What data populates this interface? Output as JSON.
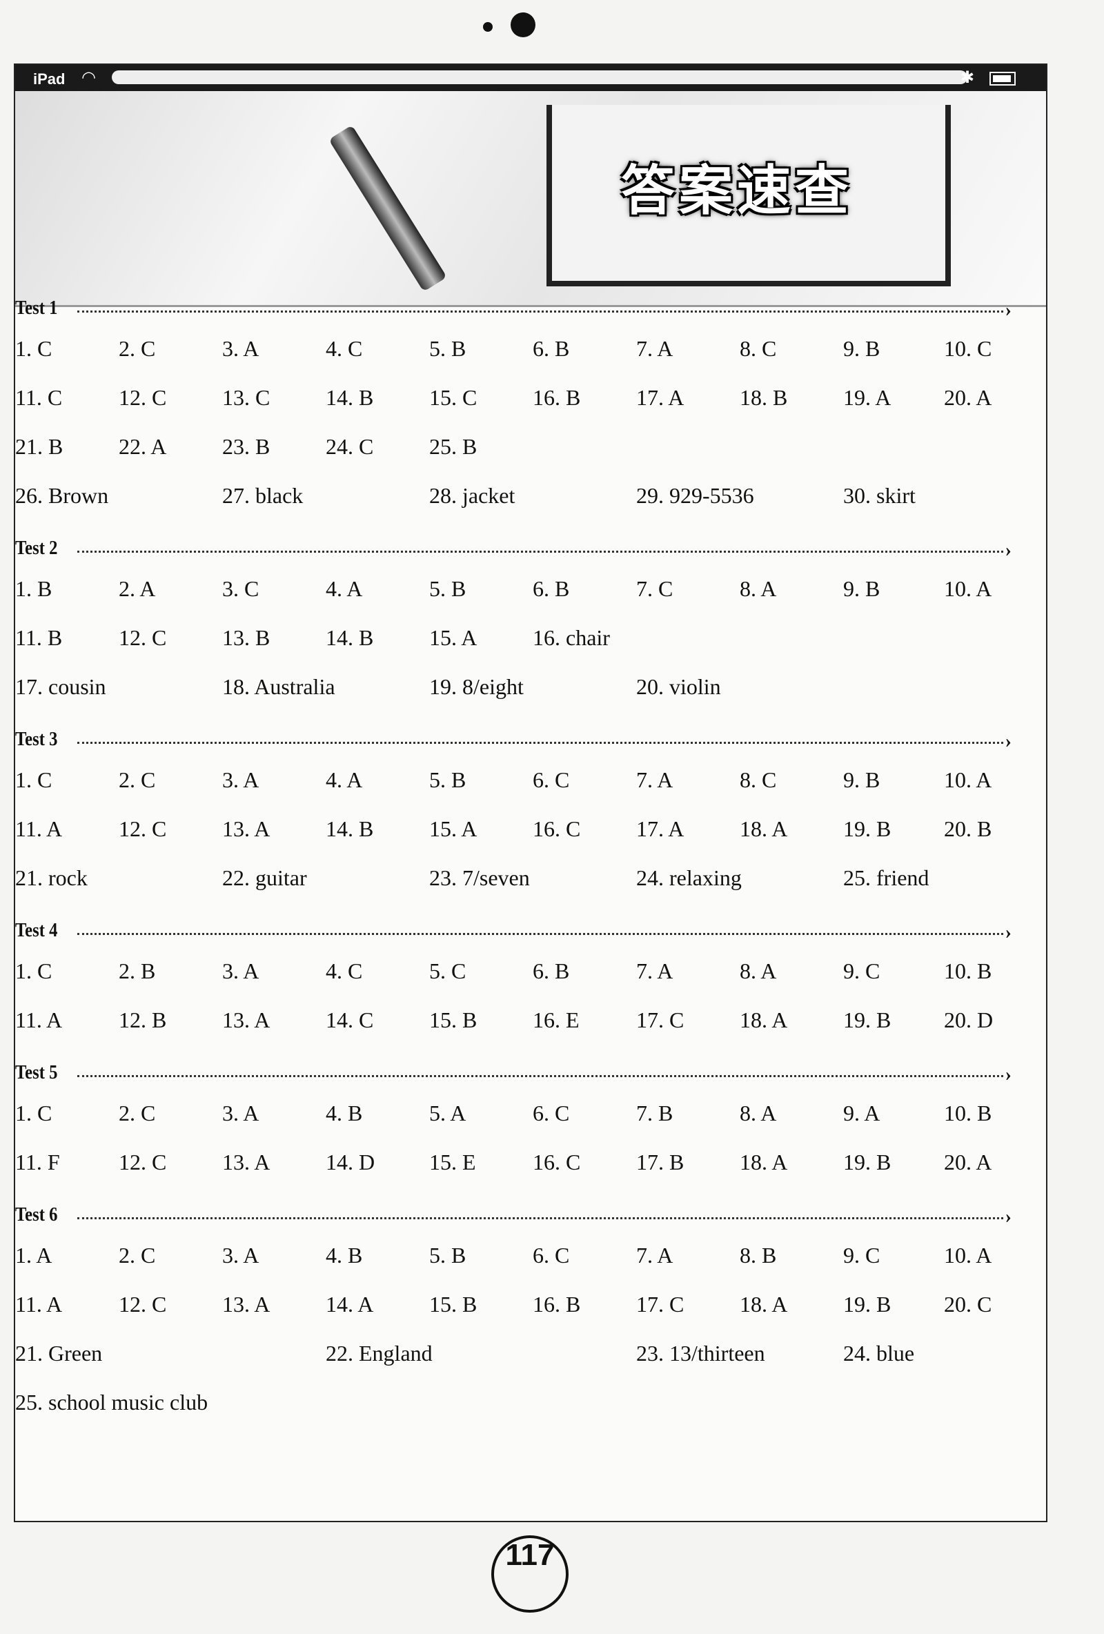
{
  "status_bar": {
    "device": "iPad",
    "wifi_icon": "wifi-icon",
    "bluetooth_icon": "bluetooth-icon",
    "battery_icon": "battery-icon"
  },
  "banner": {
    "title": "答案速查"
  },
  "tests": [
    {
      "label": "Test 1",
      "rows": [
        [
          "1. C",
          "2. C",
          "3. A",
          "4. C",
          "5. B",
          "6. B",
          "7. A",
          "8. C",
          "9. B",
          "10. C"
        ],
        [
          "11. C",
          "12. C",
          "13. C",
          "14. B",
          "15. C",
          "16. B",
          "17. A",
          "18. B",
          "19. A",
          "20. A"
        ],
        [
          "21. B",
          "22. A",
          "23. B",
          "24. C",
          "25. B"
        ],
        [
          "26. Brown",
          "27. black",
          "28. jacket",
          "29. 929-5536",
          "30. skirt"
        ]
      ]
    },
    {
      "label": "Test 2",
      "rows": [
        [
          "1. B",
          "2. A",
          "3. C",
          "4. A",
          "5. B",
          "6. B",
          "7. C",
          "8. A",
          "9. B",
          "10. A"
        ],
        [
          "11. B",
          "12. C",
          "13. B",
          "14. B",
          "15. A",
          "16. chair"
        ],
        [
          "17. cousin",
          "18. Australia",
          "19. 8/eight",
          "20. violin"
        ]
      ]
    },
    {
      "label": "Test 3",
      "rows": [
        [
          "1. C",
          "2. C",
          "3. A",
          "4. A",
          "5. B",
          "6. C",
          "7. A",
          "8. C",
          "9. B",
          "10. A"
        ],
        [
          "11. A",
          "12. C",
          "13. A",
          "14. B",
          "15. A",
          "16. C",
          "17. A",
          "18. A",
          "19. B",
          "20. B"
        ],
        [
          "21. rock",
          "22. guitar",
          "23. 7/seven",
          "24. relaxing",
          "25. friend"
        ]
      ]
    },
    {
      "label": "Test 4",
      "rows": [
        [
          "1. C",
          "2. B",
          "3. A",
          "4. C",
          "5. C",
          "6. B",
          "7. A",
          "8. A",
          "9. C",
          "10. B"
        ],
        [
          "11. A",
          "12. B",
          "13. A",
          "14. C",
          "15. B",
          "16. E",
          "17. C",
          "18. A",
          "19. B",
          "20. D"
        ]
      ]
    },
    {
      "label": "Test 5",
      "rows": [
        [
          "1. C",
          "2. C",
          "3. A",
          "4. B",
          "5. A",
          "6. C",
          "7. B",
          "8. A",
          "9. A",
          "10. B"
        ],
        [
          "11. F",
          "12. C",
          "13. A",
          "14. D",
          "15. E",
          "16. C",
          "17. B",
          "18. A",
          "19. B",
          "20. A"
        ]
      ]
    },
    {
      "label": "Test 6",
      "rows": [
        [
          "1. A",
          "2. C",
          "3. A",
          "4. B",
          "5. B",
          "6. C",
          "7. A",
          "8. B",
          "9. C",
          "10. A"
        ],
        [
          "11. A",
          "12. C",
          "13. A",
          "14. A",
          "15. B",
          "16. B",
          "17. C",
          "18. A",
          "19. B",
          "20. C"
        ],
        [
          "21. Green",
          "22. England",
          "23. 13/thirteen",
          "24. blue"
        ],
        [
          "25. school music club"
        ]
      ]
    }
  ],
  "page_number": "117"
}
